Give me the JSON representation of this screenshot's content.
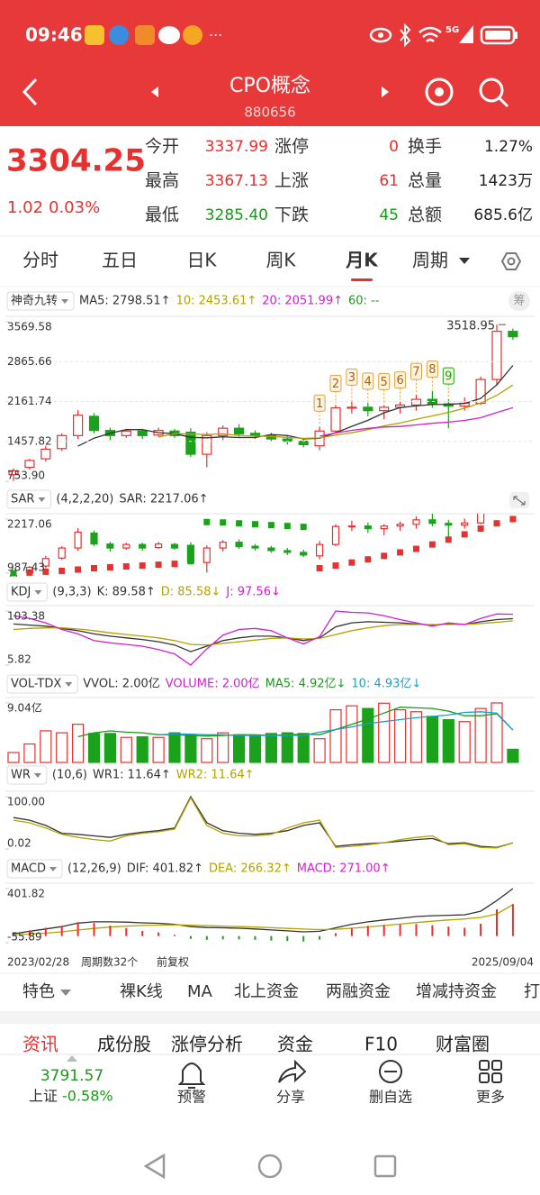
{
  "status_bar": {
    "time": "09:46",
    "more": "···",
    "network": "5G"
  },
  "header": {
    "title": "CPO概念",
    "code": "880656"
  },
  "quote": {
    "price": "3304.25",
    "change": "1.02",
    "change_pct": "0.03%",
    "rows": [
      [
        {
          "label": "今开",
          "value": "3337.99"
        },
        {
          "label": "涨停",
          "value": "0"
        },
        {
          "label": "换手",
          "value": "1.27%"
        }
      ],
      [
        {
          "label": "最高",
          "value": "3367.13"
        },
        {
          "label": "上涨",
          "value": "61"
        },
        {
          "label": "总量",
          "value": "1423万"
        }
      ],
      [
        {
          "label": "最低",
          "value": "3285.40"
        },
        {
          "label": "下跌",
          "value": "45"
        },
        {
          "label": "总额",
          "value": "685.6亿"
        }
      ]
    ]
  },
  "tabs": [
    "分时",
    "五日",
    "日K",
    "周K",
    "月K",
    "周期"
  ],
  "chip_button": "筹",
  "chart_data": [
    {
      "type": "candlestick",
      "indicator": "神奇九转",
      "legend": [
        {
          "label": "MA5: 2798.51↑",
          "color": "#333333"
        },
        {
          "label": "10: 2453.61↑",
          "color": "#b3a200"
        },
        {
          "label": "20: 2051.99↑",
          "color": "#d21ed2"
        },
        {
          "label": "60: --",
          "color": "#1a9a1a"
        }
      ],
      "categories": [
        null,
        null,
        null,
        null,
        null,
        null,
        null,
        null,
        null,
        null,
        null,
        null,
        null,
        null,
        null,
        null,
        null,
        null,
        null,
        null,
        null,
        null,
        null,
        null,
        null,
        null,
        null,
        null,
        null,
        null,
        null,
        null
      ],
      "open": [
        870,
        1000,
        1150,
        1330,
        1560,
        1900,
        1650,
        1560,
        1640,
        1570,
        1640,
        1620,
        1230,
        1560,
        1690,
        1600,
        1560,
        1500,
        1460,
        1380,
        1640,
        2050,
        2060,
        2000,
        2060,
        2100,
        2200,
        2120,
        2080,
        2130,
        2550,
        3400
      ],
      "close": [
        940,
        1120,
        1320,
        1560,
        1920,
        1650,
        1560,
        1640,
        1560,
        1650,
        1560,
        1230,
        1560,
        1690,
        1590,
        1560,
        1500,
        1460,
        1400,
        1640,
        2050,
        2060,
        2000,
        2060,
        2100,
        2200,
        2120,
        2080,
        2130,
        2550,
        3400,
        3304.25
      ],
      "high": [
        980,
        1150,
        1380,
        1600,
        2010,
        1960,
        1700,
        1680,
        1680,
        1700,
        1680,
        1690,
        1620,
        1740,
        1760,
        1650,
        1610,
        1560,
        1520,
        1720,
        2100,
        2180,
        2140,
        2100,
        2160,
        2280,
        2350,
        2200,
        2230,
        2600,
        3518.95,
        3450
      ],
      "low": [
        760,
        960,
        1100,
        1290,
        1500,
        1600,
        1480,
        1520,
        1500,
        1540,
        1520,
        1180,
        1000,
        1480,
        1540,
        1500,
        1450,
        1400,
        1350,
        1300,
        1600,
        1950,
        1900,
        1850,
        1950,
        2000,
        2050,
        1690,
        2000,
        2100,
        2450,
        3250
      ],
      "up_color": "#e8302f",
      "down_color": "#1aa31a",
      "series": [
        {
          "color": "#333333",
          "values": [
            null,
            null,
            null,
            null,
            1372,
            1514,
            1602,
            1666,
            1666,
            1612,
            1594,
            1528,
            1520,
            1538,
            1526,
            1526,
            1580,
            1560,
            1502,
            1512,
            1610,
            1722,
            1830,
            1962,
            2054,
            2084,
            2108,
            2112,
            2126,
            2216,
            2456,
            2798.51
          ]
        },
        {
          "color": "#b3a200",
          "values": [
            null,
            null,
            null,
            null,
            null,
            null,
            null,
            null,
            null,
            1534,
            1596,
            1586,
            1580,
            1593,
            1560,
            1551,
            1545,
            1527,
            1511,
            1519,
            1568,
            1609,
            1665,
            1732,
            1782,
            1846,
            1908,
            1970,
            2043,
            2134,
            2270,
            2453.61
          ]
        },
        {
          "color": "#d21ed2",
          "values": [
            null,
            null,
            null,
            null,
            null,
            null,
            null,
            null,
            null,
            null,
            null,
            null,
            null,
            null,
            null,
            null,
            null,
            null,
            null,
            1550,
            1606,
            1653,
            1687,
            1712,
            1721,
            1748,
            1776,
            1798,
            1827,
            1876,
            1968,
            2051.99
          ]
        }
      ],
      "nine_turn": [
        null,
        null,
        null,
        null,
        null,
        null,
        null,
        null,
        null,
        null,
        null,
        null,
        null,
        null,
        null,
        null,
        null,
        null,
        null,
        "1",
        "2",
        "3",
        "4",
        "5",
        "6",
        "7",
        "8",
        "9",
        null,
        null,
        null,
        null
      ],
      "ylim": [
        753.9,
        3569.58
      ],
      "yticks": [
        3569.58,
        2865.66,
        2161.74,
        1457.82,
        {
          "value": 753.9,
          "label": "753.90"
        }
      ],
      "grid": true
    },
    {
      "type": "sar",
      "indicator": "SAR",
      "params": "(4,2,2,20)",
      "legend": [
        {
          "label": "SAR: 2217.06↑",
          "color": "#333333"
        }
      ],
      "values": [
        987.43,
        1000,
        1020,
        1040,
        1070,
        1100,
        1120,
        1140,
        1160,
        1180,
        1200,
        1260,
        2150,
        2140,
        2120,
        2100,
        2080,
        2060,
        2040,
        1100,
        1160,
        1230,
        1300,
        1380,
        1460,
        1540,
        1640,
        1750,
        1870,
        2000,
        2120,
        2217.06
      ],
      "ylim": [
        987.43,
        2217.06
      ],
      "yticks": [
        2217.06,
        987.43
      ]
    },
    {
      "type": "line",
      "indicator": "KDJ",
      "params": "(9,3,3)",
      "legend": [
        {
          "label": "K: 89.58↑",
          "color": "#333333"
        },
        {
          "label": "D: 85.58↓",
          "color": "#b3a200"
        },
        {
          "label": "J: 97.56↓",
          "color": "#d21ed2"
        }
      ],
      "series": [
        {
          "color": "#333333",
          "values": [
            80,
            78,
            76,
            72,
            68,
            62,
            58,
            55,
            52,
            48,
            42,
            30,
            40,
            50,
            55,
            58,
            58,
            55,
            50,
            55,
            75,
            82,
            84,
            83,
            82,
            80,
            78,
            80,
            79,
            84,
            88,
            89.58
          ]
        },
        {
          "color": "#b3a200",
          "values": [
            70,
            72,
            73,
            73,
            71,
            68,
            64,
            61,
            58,
            55,
            50,
            43,
            42,
            45,
            48,
            51,
            54,
            55,
            53,
            54,
            61,
            68,
            73,
            77,
            79,
            79,
            79,
            79,
            79,
            81,
            83,
            85.58
          ]
        },
        {
          "color": "#d21ed2",
          "values": [
            95,
            90,
            82,
            70,
            62,
            50,
            46,
            43,
            40,
            34,
            26,
            5.82,
            35,
            60,
            70,
            72,
            68,
            55,
            44,
            57,
            103.38,
            101,
            100,
            95,
            88,
            82,
            76,
            82,
            79,
            90,
            98,
            97.56
          ]
        }
      ],
      "ylim": [
        5.82,
        103.38
      ],
      "yticks": [
        103.38,
        5.82
      ]
    },
    {
      "type": "bar",
      "indicator": "VOL-TDX",
      "legend": [
        {
          "label": "VVOL: 2.00亿",
          "color": "#333333"
        },
        {
          "label": "VOLUME: 2.00亿",
          "color": "#d21ed2"
        },
        {
          "label": "MA5: 4.92亿↓",
          "color": "#1a9a1a"
        },
        {
          "label": "10: 4.93亿↓",
          "color": "#1aa0c8"
        }
      ],
      "series": [
        {
          "mark": "bar",
          "values": [
            1.5,
            2.8,
            4.8,
            4.5,
            5.8,
            4.4,
            4.4,
            3.8,
            3.9,
            3.8,
            4.5,
            4.2,
            3.6,
            4.5,
            4.2,
            4.0,
            4.4,
            4.5,
            4.4,
            3.6,
            8.0,
            8.6,
            8.2,
            9.0,
            8.0,
            7.7,
            7.0,
            6.5,
            6.2,
            8.2,
            9.04,
            2.0
          ]
        },
        {
          "mark": "line",
          "color": "#1a9a1a",
          "values": [
            null,
            null,
            null,
            null,
            3.9,
            4.5,
            4.8,
            4.6,
            4.5,
            4.2,
            4.2,
            4.1,
            4.0,
            4.1,
            4.2,
            4.2,
            4.1,
            4.2,
            4.3,
            4.2,
            5.0,
            5.8,
            6.6,
            7.5,
            8.4,
            8.3,
            8.2,
            7.8,
            7.1,
            7.1,
            7.4,
            4.92
          ]
        },
        {
          "mark": "line",
          "color": "#1aa0c8",
          "values": [
            null,
            null,
            null,
            null,
            null,
            null,
            null,
            null,
            null,
            4.2,
            4.3,
            4.3,
            4.2,
            4.2,
            4.1,
            4.1,
            4.1,
            4.1,
            4.1,
            4.6,
            5.0,
            5.4,
            5.9,
            6.2,
            6.5,
            6.8,
            7.0,
            7.2,
            7.6,
            7.7,
            7.5,
            4.93
          ]
        }
      ],
      "ylim": [
        0,
        9.04
      ],
      "yticks": [
        {
          "value": 9.04,
          "label": "9.04亿"
        }
      ]
    },
    {
      "type": "line",
      "indicator": "WR",
      "params": "(10,6)",
      "legend": [
        {
          "label": "WR1: 11.64↑",
          "color": "#333333"
        },
        {
          "label": "WR2: 11.64↑",
          "color": "#b3a200"
        }
      ],
      "series": [
        {
          "color": "#333333",
          "values": [
            60,
            55,
            45,
            30,
            28,
            25,
            22,
            28,
            32,
            35,
            40,
            100,
            50,
            35,
            30,
            28,
            30,
            35,
            45,
            50,
            5,
            8,
            10,
            12,
            15,
            18,
            20,
            10,
            12,
            5,
            3,
            11.64
          ]
        },
        {
          "color": "#b3a200",
          "values": [
            55,
            50,
            40,
            28,
            22,
            18,
            15,
            25,
            30,
            33,
            38,
            98,
            45,
            30,
            25,
            25,
            28,
            40,
            50,
            55,
            3,
            5,
            8,
            12,
            18,
            22,
            25,
            8,
            10,
            3,
            2,
            11.64
          ]
        }
      ],
      "ylim": [
        0.02,
        100
      ],
      "yticks": [
        {
          "value": 100,
          "label": "100.00"
        },
        0.02
      ]
    },
    {
      "type": "bar",
      "indicator": "MACD",
      "params": "(12,26,9)",
      "legend": [
        {
          "label": "DIF: 401.82↑",
          "color": "#333333"
        },
        {
          "label": "DEA: 266.32↑",
          "color": "#b3a200"
        },
        {
          "label": "MACD: 271.00↑",
          "color": "#d21ed2"
        }
      ],
      "series": [
        {
          "mark": "line",
          "color": "#333333",
          "values": [
            20,
            40,
            60,
            80,
            110,
            120,
            120,
            118,
            112,
            108,
            100,
            80,
            72,
            70,
            66,
            60,
            52,
            44,
            36,
            40,
            70,
            100,
            120,
            136,
            150,
            165,
            172,
            176,
            180,
            210,
            300,
            401.82
          ]
        },
        {
          "mark": "line",
          "color": "#b3a200",
          "values": [
            10,
            16,
            25,
            36,
            51,
            65,
            76,
            84,
            90,
            93,
            95,
            92,
            88,
            84,
            80,
            76,
            71,
            65,
            59,
            55,
            58,
            66,
            77,
            89,
            101,
            114,
            126,
            136,
            145,
            158,
            187,
            266.32
          ]
        },
        {
          "mark": "bar",
          "values": [
            20,
            48,
            70,
            88,
            118,
            110,
            88,
            68,
            44,
            30,
            10,
            -24,
            -32,
            -28,
            -28,
            -32,
            -38,
            -42,
            -46,
            -30,
            24,
            68,
            86,
            94,
            98,
            102,
            92,
            80,
            70,
            104,
            226,
            271.0
          ]
        }
      ],
      "ylim": [
        -55.89,
        401.82
      ],
      "yticks": [
        401.82,
        -55.89
      ]
    }
  ],
  "chart_footer": {
    "start": "2023/02/28",
    "count": "周期数32个",
    "adjust": "前复权",
    "end": "2025/09/04"
  },
  "func_tabs": [
    "特色",
    "裸K线",
    "MA",
    "北上资金",
    "两融资金",
    "增减持资金",
    "打"
  ],
  "news_tabs": [
    "资讯",
    "成份股",
    "涨停分析",
    "资金",
    "F10",
    "财富圈"
  ],
  "index": {
    "value": "3791.57",
    "name": "上证",
    "pct": "-0.58%"
  },
  "toolbar": [
    "预警",
    "分享",
    "删自选",
    "更多"
  ]
}
